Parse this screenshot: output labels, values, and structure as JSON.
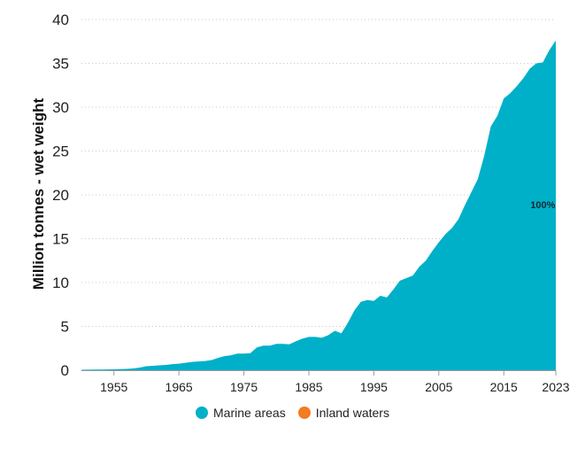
{
  "chart_data": {
    "type": "area",
    "ylabel": "Million tonnes - wet weight",
    "xlabel": "",
    "ylim": [
      0,
      40
    ],
    "yticks": [
      0,
      5,
      10,
      15,
      20,
      25,
      30,
      35,
      40
    ],
    "xlim": [
      1950,
      2023
    ],
    "xticks": [
      1955,
      1965,
      1975,
      1985,
      1995,
      2005,
      2015,
      2023
    ],
    "grid": "horizontal-dotted",
    "legend_position": "bottom",
    "x": [
      1950,
      1951,
      1952,
      1953,
      1954,
      1955,
      1956,
      1957,
      1958,
      1959,
      1960,
      1961,
      1962,
      1963,
      1964,
      1965,
      1966,
      1967,
      1968,
      1969,
      1970,
      1971,
      1972,
      1973,
      1974,
      1975,
      1976,
      1977,
      1978,
      1979,
      1980,
      1981,
      1982,
      1983,
      1984,
      1985,
      1986,
      1987,
      1988,
      1989,
      1990,
      1991,
      1992,
      1993,
      1994,
      1995,
      1996,
      1997,
      1998,
      1999,
      2000,
      2001,
      2002,
      2003,
      2004,
      2005,
      2006,
      2007,
      2008,
      2009,
      2010,
      2011,
      2012,
      2013,
      2014,
      2015,
      2016,
      2017,
      2018,
      2019,
      2020,
      2021,
      2022,
      2023
    ],
    "series": [
      {
        "name": "Marine areas",
        "color": "#00b0c8",
        "values": [
          0.05,
          0.06,
          0.07,
          0.08,
          0.09,
          0.1,
          0.12,
          0.15,
          0.2,
          0.3,
          0.45,
          0.5,
          0.55,
          0.6,
          0.7,
          0.75,
          0.85,
          0.95,
          1.0,
          1.05,
          1.15,
          1.4,
          1.6,
          1.7,
          1.9,
          1.9,
          1.95,
          2.6,
          2.8,
          2.8,
          3.0,
          3.0,
          2.95,
          3.3,
          3.6,
          3.8,
          3.8,
          3.7,
          4.0,
          4.5,
          4.2,
          5.4,
          6.8,
          7.8,
          8.0,
          7.9,
          8.5,
          8.3,
          9.2,
          10.2,
          10.5,
          10.8,
          11.8,
          12.5,
          13.6,
          14.6,
          15.5,
          16.2,
          17.2,
          18.8,
          20.3,
          21.8,
          24.5,
          27.8,
          29.0,
          31.0,
          31.6,
          32.4,
          33.3,
          34.4,
          35.0,
          35.1,
          36.5,
          37.6
        ]
      },
      {
        "name": "Inland waters",
        "color": "#f47b20",
        "values": [
          0,
          0,
          0,
          0,
          0,
          0,
          0,
          0,
          0,
          0,
          0,
          0,
          0,
          0,
          0,
          0,
          0,
          0,
          0,
          0,
          0,
          0,
          0,
          0,
          0,
          0,
          0,
          0,
          0,
          0,
          0,
          0,
          0,
          0,
          0,
          0,
          0,
          0,
          0,
          0,
          0,
          0,
          0,
          0,
          0,
          0,
          0,
          0,
          0,
          0,
          0,
          0,
          0,
          0,
          0,
          0,
          0,
          0,
          0,
          0,
          0,
          0,
          0,
          0,
          0,
          0,
          0,
          0,
          0,
          0,
          0,
          0,
          0,
          0
        ]
      }
    ],
    "annotations": [
      {
        "text": "100%",
        "x": 2021,
        "y": 18.5
      }
    ]
  },
  "legend": {
    "items": [
      {
        "label": "Marine areas",
        "color": "#00b0c8"
      },
      {
        "label": "Inland waters",
        "color": "#f47b20"
      }
    ]
  }
}
